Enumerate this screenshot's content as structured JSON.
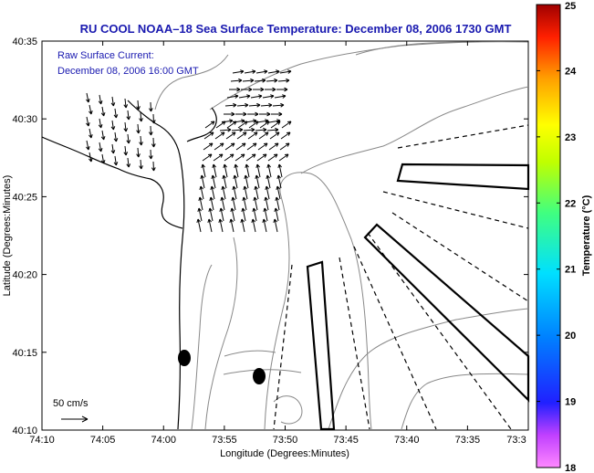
{
  "title": "RU COOL  NOAA–18  Sea Surface Temperature:  December 08, 2006 1730 GMT",
  "current_label": "Raw Surface Current:",
  "current_time": "December 08, 2006 16:00 GMT",
  "scale_label": "50 cm/s",
  "xlabel": "Longitude (Degrees:Minutes)",
  "ylabel": "Latitude (Degrees:Minutes)",
  "colorbar_label": "Temperature (°C)",
  "x_ticks": [
    "74:10",
    "74:05",
    "74:00",
    "73:55",
    "73:50",
    "73:45",
    "73:40",
    "73:35",
    "73:3"
  ],
  "y_ticks": [
    "40:35",
    "40:30",
    "40:25",
    "40:20",
    "40:15",
    "40:10"
  ],
  "colorbar_ticks": [
    "25",
    "24",
    "23",
    "22",
    "21",
    "20",
    "19",
    "18"
  ],
  "chart_data": {
    "type": "map",
    "xlim": [
      "74:10",
      "73:30"
    ],
    "ylim": [
      "40:10",
      "40:35"
    ],
    "colorbar_range": [
      18,
      25
    ],
    "colors": {
      "axis": "#1a1ab0",
      "contour": "#888888",
      "coast": "#000000"
    }
  }
}
